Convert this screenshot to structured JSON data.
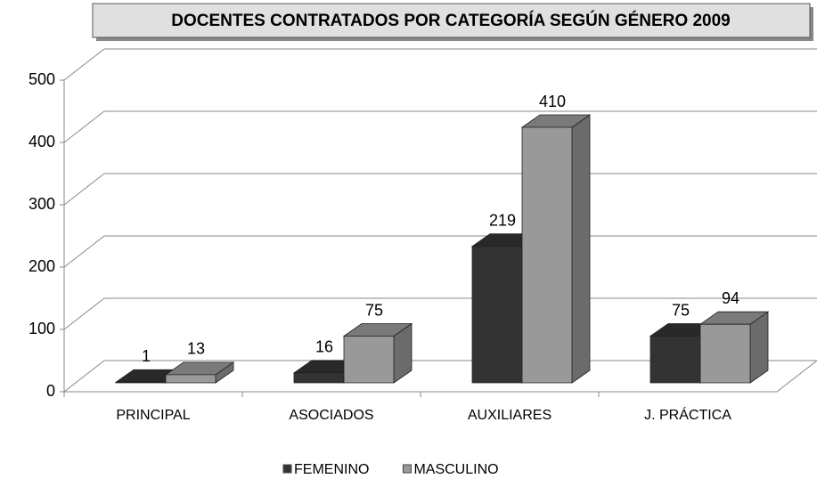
{
  "chart_data": {
    "type": "bar3d",
    "title": "DOCENTES CONTRATADOS POR CATEGORÍA SEGÚN GÉNERO 2009",
    "categories": [
      "PRINCIPAL",
      "ASOCIADOS",
      "AUXILIARES",
      "J. PRÁCTICA"
    ],
    "series": [
      {
        "name": "FEMENINO",
        "color": "#333333",
        "values": [
          1,
          16,
          219,
          75
        ]
      },
      {
        "name": "MASCULINO",
        "color": "#999999",
        "values": [
          13,
          75,
          410,
          94
        ]
      }
    ],
    "ylim": [
      0,
      500
    ],
    "yticks": [
      0,
      100,
      200,
      300,
      400,
      500
    ],
    "grid": true,
    "legend": "bottom"
  }
}
